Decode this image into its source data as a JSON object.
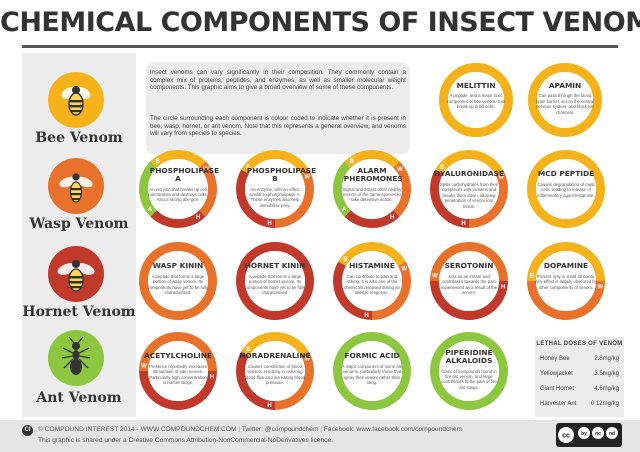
{
  "title": "CHEMICAL COMPONENTS OF INSECT VENOMS",
  "colors": {
    "bee": "#f6b21b",
    "wasp": "#e8722b",
    "hornet": "#c0392b",
    "ant": "#8dc63f",
    "dark": "#333333",
    "panel": "#ececec"
  },
  "venoms": [
    {
      "label": "Bee Venom",
      "icon": "bee-icon",
      "color": "#f6b21b"
    },
    {
      "label": "Wasp Venom",
      "icon": "wasp-icon",
      "color": "#e8722b"
    },
    {
      "label": "Hornet Venom",
      "icon": "hornet-icon",
      "color": "#c0392b"
    },
    {
      "label": "Ant Venom",
      "icon": "ant-icon",
      "color": "#8dc63f"
    }
  ],
  "intro": {
    "p1": "Insect venoms can vary significantly in their composition. They commonly contain a complex mix of proteins, peptides, and enzymes, as well as smaller molecular weight components. This graphic aims to give a broad overview of some of these components.",
    "p2": "The circle surrounding each component is colour coded to indicate whether it is present in bee, wasp, hornet, or ant venom. Note that this represents a general overview, and venoms will vary from species to species."
  },
  "components": [
    {
      "name": "MELITTIN",
      "desc": "A peptide, and a major toxic component of bee venom. Can break up & kill cells.",
      "venoms": [
        "B"
      ]
    },
    {
      "name": "APAMIN",
      "desc": "Can pass through the blood brain barrier, act on the central nervous system, and block ion channels.",
      "venoms": [
        "B"
      ]
    },
    {
      "name": "PHOSPHOLIPASE A",
      "desc": "An enzyme that breaks up cell membranes and destroys cells. Also a strong allergen.",
      "venoms": [
        "B",
        "W",
        "H",
        "A"
      ]
    },
    {
      "name": "PHOSPHOLIPASE B",
      "desc": "An enzyme, with an effect similar to phospholipase A. These enzymes also help immobilise prey.",
      "venoms": [
        "B",
        "W",
        "H"
      ]
    },
    {
      "name": "ALARM PHEROMONES",
      "desc": "Signal and attract other nearby insects of the same species to take defensive action.",
      "venoms": [
        "B",
        "W",
        "H",
        "A"
      ]
    },
    {
      "name": "HYALURONIDASE",
      "desc": "Splits carbohydrates from their complexes with proteins and breaks them down, allowing penetration of venom into tissue.",
      "venoms": [
        "B",
        "W",
        "H"
      ]
    },
    {
      "name": "MCD PEPTIDE",
      "desc": "Causes degranulation of mast cells, leading to release of inflammatory agent histamine.",
      "venoms": [
        "B"
      ]
    },
    {
      "name": "WASP KININ",
      "desc": "A peptide that forms a large portion of wasp venom. Its components have yet to be fully characterised.",
      "venoms": [
        "W"
      ]
    },
    {
      "name": "HORNET KININ",
      "desc": "A peptide that forms a large portion of hornet venom. Its components have yet to be fully characterised.",
      "venoms": [
        "H"
      ]
    },
    {
      "name": "HISTAMINE",
      "desc": "Can contribute to pain and itching. It is also one of the chemicals released during an allergic response.",
      "venoms": [
        "B",
        "W",
        "H"
      ]
    },
    {
      "name": "SEROTONIN",
      "desc": "Acts as an irritant and contributes towards the pain experienced as a result of the venom.",
      "venoms": [
        "W",
        "H"
      ]
    },
    {
      "name": "DOPAMINE",
      "desc": "Present only in small amounts. Any effect is largely obscured by other components of venom.",
      "venoms": [
        "B",
        "W"
      ]
    },
    {
      "name": "ACETYLCHOLINE",
      "desc": "Presence reportedly increases stimulation of pain nerves. Particularly high concentration in hornet stings.",
      "venoms": [
        "W",
        "H"
      ]
    },
    {
      "name": "NORADRENALINE",
      "desc": "Causes constriction of blood vessels, resulting in reducing blood flow and increasing blood pressure.",
      "venoms": [
        "B",
        "W",
        "H"
      ]
    },
    {
      "name": "FORMIC ACID",
      "desc": "A major component of some ant venoms, particularly those that spray their venom rather than sting.",
      "venoms": [
        "A"
      ]
    },
    {
      "name": "PIPERIDINE ALKALOIDS",
      "desc": "Class of compounds found in fire ant venom, and large contributors to the pain of fire ant stings.",
      "venoms": [
        "A"
      ]
    }
  ],
  "lethal": {
    "title": "LETHAL DOSES OF VENOM",
    "rows": [
      {
        "name": "Honey Bee",
        "value": "2.8mg/kg"
      },
      {
        "name": "Yellowjacket",
        "value": "3.5mg/kg"
      },
      {
        "name": "Giant Hornet",
        "value": "4.6mg/kg"
      },
      {
        "name": "Harvester Ant",
        "value": "0.12mg/kg"
      }
    ]
  },
  "footer": {
    "logo": "CI",
    "copyright": "© COMPOUND INTEREST 2014 - WWW.COMPOUNDCHEM.COM",
    "twitter": "Twitter: @compoundchem",
    "facebook": "Facebook: www.facebook.com/compoundchem",
    "license": "This graphic is shared under a Creative Commons Attribution-NonCommercial-NoDerivatives licence.",
    "badge": [
      "cc",
      "by",
      "nc",
      "nd"
    ]
  }
}
